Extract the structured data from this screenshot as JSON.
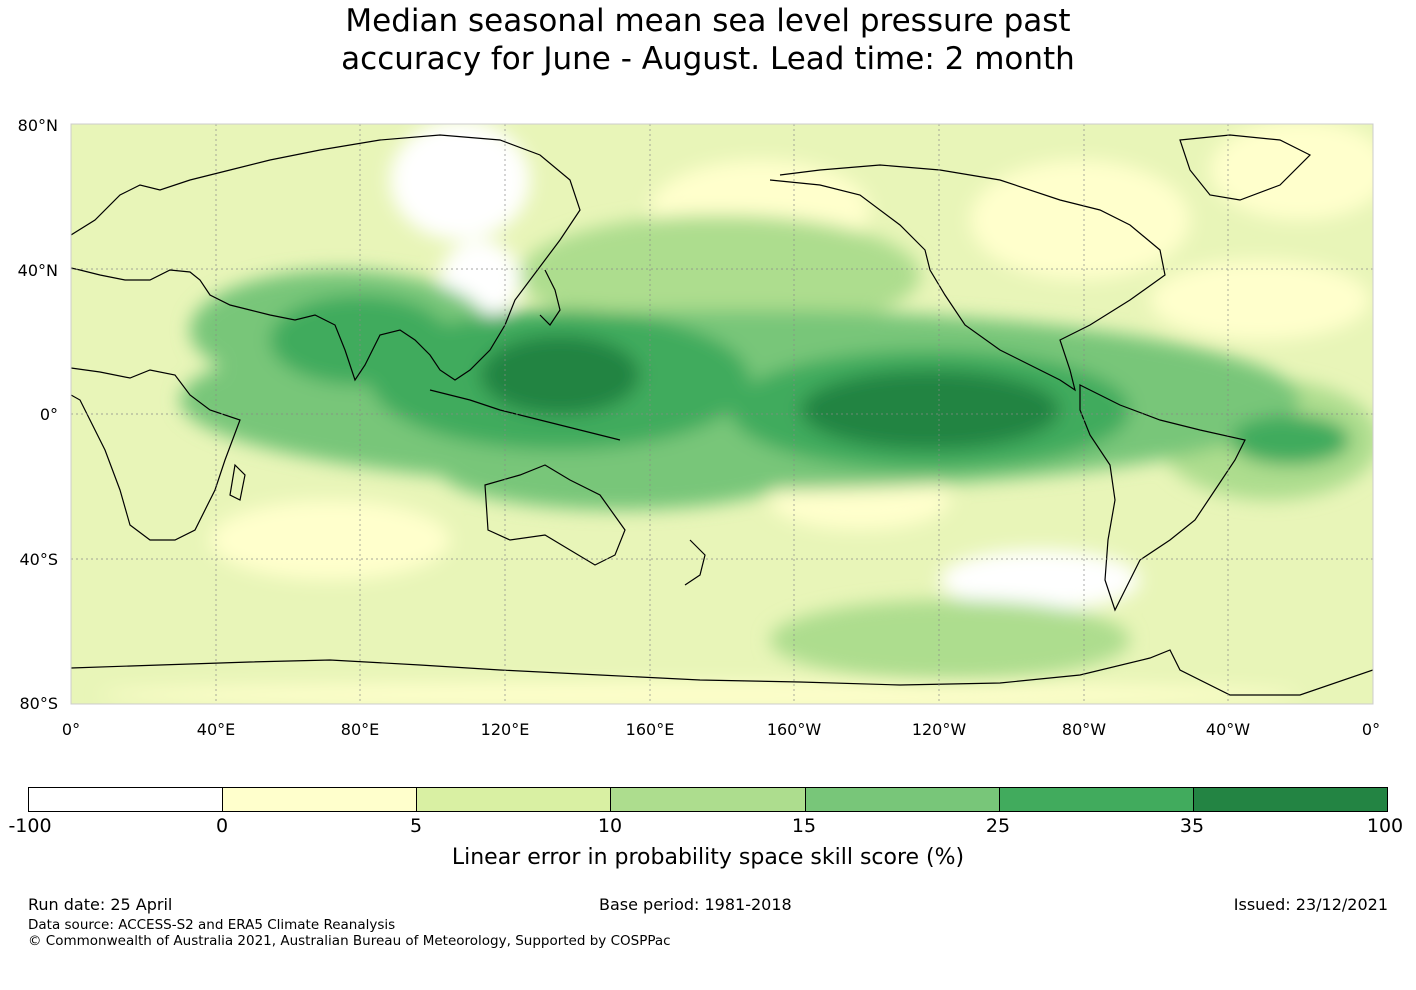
{
  "title": {
    "line1": "Median seasonal mean sea level pressure past",
    "line2": "accuracy for June - August. Lead time: 2 month"
  },
  "map": {
    "lat_ticks": [
      "80°N",
      "40°N",
      "0°",
      "40°S",
      "80°S"
    ],
    "lon_ticks": [
      "0°",
      "40°E",
      "80°E",
      "120°E",
      "160°E",
      "160°W",
      "120°W",
      "80°W",
      "40°W",
      "0°"
    ],
    "lat_range": [
      -80,
      80
    ],
    "lon_range": [
      0,
      360
    ],
    "gridlines": true,
    "coastline_color": "#000000"
  },
  "colorbar": {
    "ticks": [
      "-100",
      "0",
      "5",
      "10",
      "15",
      "25",
      "35",
      "100"
    ],
    "colors": [
      "#ffffff",
      "#ffffcc",
      "#d9f0a3",
      "#addd8e",
      "#78c679",
      "#41ab5d",
      "#238443"
    ],
    "label": "Linear error in probability space skill score (%)"
  },
  "footer": {
    "run_date": "Run date: 25 April",
    "base_period": "Base period: 1981-2018",
    "issued": "Issued: 23/12/2021",
    "data_source": "Data source: ACCESS-S2 and ERA5 Climate Reanalysis",
    "copyright": "© Commonwealth of Australia 2021, Australian Bureau of Meteorology, Supported by COSPPac"
  }
}
